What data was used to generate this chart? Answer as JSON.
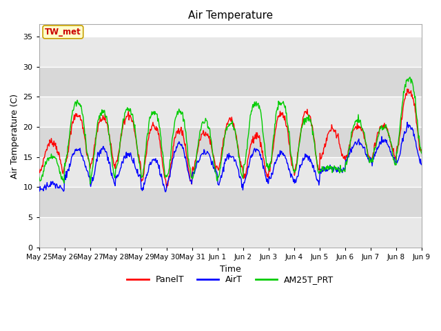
{
  "title": "Air Temperature",
  "xlabel": "Time",
  "ylabel": "Air Temperature (C)",
  "ylim": [
    0,
    37
  ],
  "yticks": [
    0,
    5,
    10,
    15,
    20,
    25,
    30,
    35
  ],
  "figsize": [
    6.4,
    4.8
  ],
  "dpi": 100,
  "plot_bg_color": "#ffffff",
  "band_colors": [
    "#e8e8e8",
    "#d8d8d8"
  ],
  "annotation_text": "TW_met",
  "annotation_color": "#cc0000",
  "annotation_bg": "#ffffcc",
  "annotation_border": "#c8a000",
  "series_colors": [
    "#ff0000",
    "#0000ff",
    "#00cc00"
  ],
  "series_names": [
    "PanelT",
    "AirT",
    "AM25T_PRT"
  ],
  "tick_labels": [
    "May 25",
    "May 26",
    "May 27",
    "May 28",
    "May 29",
    "May 30",
    "May 31",
    "Jun 1",
    "Jun 2",
    "Jun 3",
    "Jun 4",
    "Jun 5",
    "Jun 6",
    "Jun 7",
    "Jun 8",
    "Jun 9"
  ],
  "n_days": 16,
  "line_width": 1.0,
  "grid_color": "#ffffff",
  "spine_color": "#aaaaaa"
}
